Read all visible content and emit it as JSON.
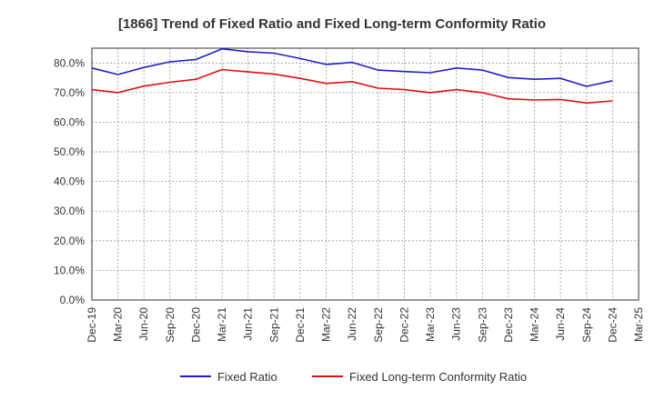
{
  "chart_data": {
    "type": "line",
    "title": "[1866]  Trend of Fixed Ratio and Fixed Long-term Conformity Ratio",
    "xlabel": "",
    "ylabel": "",
    "ylim": [
      0,
      85
    ],
    "grid": true,
    "legend_position": "bottom",
    "x_tick_labels": [
      "Dec-19",
      "Mar-20",
      "Jun-20",
      "Sep-20",
      "Dec-20",
      "Mar-21",
      "Jun-21",
      "Sep-21",
      "Dec-21",
      "Mar-22",
      "Jun-22",
      "Sep-22",
      "Dec-22",
      "Mar-23",
      "Jun-23",
      "Sep-23",
      "Dec-23",
      "Mar-24",
      "Jun-24",
      "Sep-24",
      "Dec-24",
      "Mar-25"
    ],
    "y_tick_values": [
      0,
      10,
      20,
      30,
      40,
      50,
      60,
      70,
      80
    ],
    "y_tick_labels": [
      "0.0%",
      "10.0%",
      "20.0%",
      "30.0%",
      "40.0%",
      "50.0%",
      "60.0%",
      "70.0%",
      "80.0%"
    ],
    "categories": [
      "Dec-19",
      "Mar-20",
      "Jun-20",
      "Sep-20",
      "Dec-20",
      "Mar-21",
      "Jun-21",
      "Sep-21",
      "Dec-21",
      "Mar-22",
      "Jun-22",
      "Sep-22",
      "Dec-22",
      "Mar-23",
      "Jun-23",
      "Sep-23",
      "Dec-23",
      "Mar-24",
      "Jun-24",
      "Sep-24",
      "Dec-24"
    ],
    "series": [
      {
        "name": "Fixed Ratio",
        "color": "#1f1fcc",
        "values": [
          78.3,
          76.1,
          78.5,
          80.4,
          81.2,
          84.8,
          83.8,
          83.3,
          81.5,
          79.5,
          80.2,
          77.6,
          77.1,
          76.7,
          78.3,
          77.6,
          75.1,
          74.5,
          74.8,
          72.1,
          74.0
        ]
      },
      {
        "name": "Fixed Long-term Conformity Ratio",
        "color": "#e01010",
        "values": [
          71.0,
          70.0,
          72.2,
          73.5,
          74.5,
          77.8,
          77.0,
          76.3,
          74.8,
          73.1,
          73.7,
          71.5,
          71.0,
          70.0,
          71.0,
          70.0,
          67.9,
          67.5,
          67.7,
          66.5,
          67.2
        ]
      }
    ]
  }
}
